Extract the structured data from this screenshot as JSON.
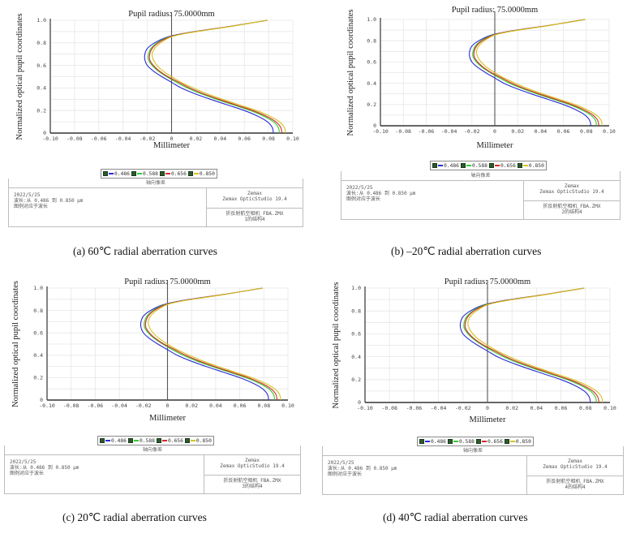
{
  "figure": {
    "panels": [
      {
        "id": "a",
        "caption": "(a) 60℃  radial aberration curves",
        "pupil_title": "Pupil radius: 75.0000mm",
        "info": {
          "header": "轴向像差",
          "date": "2022/5/25",
          "wavelength_line": "波长:从 0.486 到 0.850 μm",
          "legend_note": "图例对应于波长",
          "vendor": "Zemax",
          "product": "Zemax OpticStudio 19.4",
          "file": "折反射航空相机_FBA.ZMX",
          "config": "1的结构4"
        }
      },
      {
        "id": "b",
        "caption": "(b) –20℃  radial aberration curves",
        "pupil_title": "Pupil radius: 75.0000mm",
        "info": {
          "header": "轴向像差",
          "date": "2022/5/25",
          "wavelength_line": "波长:从 0.486 到 0.850 μm",
          "legend_note": "图例对应于波长",
          "vendor": "Zemax",
          "product": "Zemax OpticStudio 19.4",
          "file": "折反射航空相机_FBA.ZMX",
          "config": "2的结构4"
        }
      },
      {
        "id": "c",
        "caption": "(c) 20℃  radial aberration curves",
        "pupil_title": "Pupil radius: 75.0000mm",
        "info": {
          "header": "轴向像差",
          "date": "2022/5/25",
          "wavelength_line": "波长:从 0.486 到 0.850 μm",
          "legend_note": "图例对应于波长",
          "vendor": "Zemax",
          "product": "Zemax OpticStudio 19.4",
          "file": "折反射航空相机_FBA.ZMX",
          "config": "3的结构4"
        }
      },
      {
        "id": "d",
        "caption": "(d) 40℃  radial aberration curves",
        "pupil_title": "Pupil radius: 75.0000mm",
        "info": {
          "header": "轴向像差",
          "date": "2022/5/25",
          "wavelength_line": "波长:从 0.486 到 0.850 μm",
          "legend_note": "图例对应于波长",
          "vendor": "Zemax",
          "product": "Zemax OpticStudio 19.4",
          "file": "折反射航空相机_FBA.ZMX",
          "config": "4的结构4"
        }
      }
    ]
  },
  "chart_data": {
    "type": "line",
    "title": "Pupil radius: 75.0000mm",
    "xlabel": "Millimeter",
    "ylabel": "Normalized optical pupil coordinates",
    "xlim": [
      -0.1,
      0.1
    ],
    "ylim": [
      0,
      1.0
    ],
    "x_ticks": [
      "-0.10",
      "-0.08",
      "-0.06",
      "-0.04",
      "-0.02",
      "0",
      "0.02",
      "0.04",
      "0.06",
      "0.08",
      "0.10"
    ],
    "y_ticks": [
      "0",
      "0.2",
      "0.4",
      "0.6",
      "0.8",
      "1.0"
    ],
    "grid": true,
    "legend_position": "bottom-center",
    "legend": [
      "0.486",
      "0.588",
      "0.656",
      "0.850"
    ],
    "note": "Curves plotted as x (aberration, mm) versus y (normalized pupil coordinate); same curve set shown in all four panels.",
    "series": [
      {
        "name": "0.486",
        "color": "#2b2bd6",
        "points": [
          [
            0.084,
            0.0
          ],
          [
            0.083,
            0.05
          ],
          [
            0.079,
            0.1
          ],
          [
            0.071,
            0.15
          ],
          [
            0.06,
            0.2
          ],
          [
            0.046,
            0.25
          ],
          [
            0.032,
            0.3
          ],
          [
            0.019,
            0.35
          ],
          [
            0.008,
            0.4
          ],
          [
            0.0,
            0.45
          ],
          [
            -0.008,
            0.5
          ],
          [
            -0.015,
            0.55
          ],
          [
            -0.02,
            0.6
          ],
          [
            -0.022,
            0.65
          ],
          [
            -0.022,
            0.7
          ],
          [
            -0.02,
            0.75
          ],
          [
            -0.014,
            0.8
          ],
          [
            -0.004,
            0.85
          ],
          [
            0.008,
            0.88
          ],
          [
            0.025,
            0.91
          ],
          [
            0.045,
            0.94
          ],
          [
            0.062,
            0.97
          ],
          [
            0.079,
            1.0
          ]
        ]
      },
      {
        "name": "0.588",
        "color": "#33cc33",
        "points": [
          [
            0.089,
            0.0
          ],
          [
            0.088,
            0.05
          ],
          [
            0.084,
            0.1
          ],
          [
            0.076,
            0.15
          ],
          [
            0.065,
            0.2
          ],
          [
            0.051,
            0.25
          ],
          [
            0.037,
            0.3
          ],
          [
            0.024,
            0.35
          ],
          [
            0.013,
            0.4
          ],
          [
            0.004,
            0.45
          ],
          [
            -0.004,
            0.5
          ],
          [
            -0.011,
            0.55
          ],
          [
            -0.016,
            0.6
          ],
          [
            -0.019,
            0.65
          ],
          [
            -0.019,
            0.7
          ],
          [
            -0.017,
            0.75
          ],
          [
            -0.012,
            0.8
          ],
          [
            -0.003,
            0.85
          ],
          [
            0.009,
            0.88
          ],
          [
            0.026,
            0.91
          ],
          [
            0.045,
            0.94
          ],
          [
            0.062,
            0.97
          ],
          [
            0.079,
            1.0
          ]
        ]
      },
      {
        "name": "0.656",
        "color": "#d62b2b",
        "points": [
          [
            0.091,
            0.0
          ],
          [
            0.09,
            0.05
          ],
          [
            0.086,
            0.1
          ],
          [
            0.078,
            0.15
          ],
          [
            0.067,
            0.2
          ],
          [
            0.053,
            0.25
          ],
          [
            0.039,
            0.3
          ],
          [
            0.026,
            0.35
          ],
          [
            0.015,
            0.4
          ],
          [
            0.006,
            0.45
          ],
          [
            -0.003,
            0.5
          ],
          [
            -0.01,
            0.55
          ],
          [
            -0.015,
            0.6
          ],
          [
            -0.018,
            0.65
          ],
          [
            -0.018,
            0.7
          ],
          [
            -0.016,
            0.75
          ],
          [
            -0.011,
            0.8
          ],
          [
            -0.002,
            0.85
          ],
          [
            0.009,
            0.88
          ],
          [
            0.026,
            0.91
          ],
          [
            0.045,
            0.94
          ],
          [
            0.062,
            0.97
          ],
          [
            0.079,
            1.0
          ]
        ]
      },
      {
        "name": "0.850",
        "color": "#d6c21f",
        "points": [
          [
            0.094,
            0.0
          ],
          [
            0.093,
            0.05
          ],
          [
            0.089,
            0.1
          ],
          [
            0.081,
            0.15
          ],
          [
            0.07,
            0.2
          ],
          [
            0.056,
            0.25
          ],
          [
            0.042,
            0.3
          ],
          [
            0.029,
            0.35
          ],
          [
            0.018,
            0.4
          ],
          [
            0.008,
            0.45
          ],
          [
            0.0,
            0.5
          ],
          [
            -0.007,
            0.55
          ],
          [
            -0.012,
            0.6
          ],
          [
            -0.015,
            0.65
          ],
          [
            -0.016,
            0.7
          ],
          [
            -0.014,
            0.75
          ],
          [
            -0.009,
            0.8
          ],
          [
            -0.001,
            0.85
          ],
          [
            0.01,
            0.88
          ],
          [
            0.027,
            0.91
          ],
          [
            0.046,
            0.94
          ],
          [
            0.062,
            0.97
          ],
          [
            0.079,
            1.0
          ]
        ]
      }
    ]
  }
}
